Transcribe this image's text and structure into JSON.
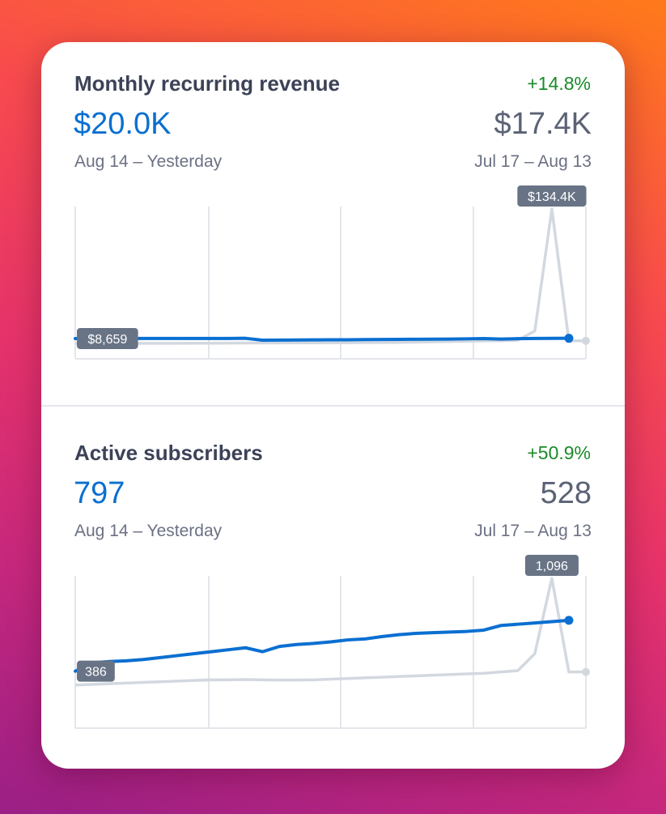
{
  "colors": {
    "current_line": "#0a6fd1",
    "previous_line": "#d3d8e0",
    "positive_change": "#1a8a29",
    "tag_bg": "#687385"
  },
  "metrics": [
    {
      "title": "Monthly recurring revenue",
      "change": "+14.8%",
      "current_value": "$20.0K",
      "previous_value": "$17.4K",
      "current_range": "Aug 14 – Yesterday",
      "previous_range": "Jul 17 – Aug 13"
    },
    {
      "title": "Active subscribers",
      "change": "+50.9%",
      "current_value": "797",
      "previous_value": "528",
      "current_range": "Aug 14 – Yesterday",
      "previous_range": "Jul 17 – Aug 13"
    }
  ],
  "chart_data": [
    {
      "type": "line",
      "title": "Monthly recurring revenue",
      "ylim": [
        0,
        134400
      ],
      "grid": true,
      "series": [
        {
          "name": "Aug 14 – Yesterday",
          "values": [
            8659,
            8700,
            8700,
            8750,
            8750,
            8700,
            8700,
            8700,
            8750,
            8750,
            8900,
            7100,
            7200,
            7300,
            7400,
            7500,
            7500,
            7700,
            7800,
            7900,
            8000,
            8100,
            8200,
            8400,
            8600,
            8200,
            8500,
            8700,
            8800,
            8900
          ]
        },
        {
          "name": "Jul 17 – Aug 13",
          "values": [
            3900,
            3900,
            3900,
            3950,
            4000,
            4000,
            4050,
            4100,
            4100,
            4200,
            4300,
            4400,
            4400,
            4500,
            4500,
            4600,
            4600,
            4700,
            4800,
            4900,
            5200,
            5500,
            5800,
            6100,
            6400,
            6600,
            7000,
            16000,
            134400,
            6500,
            6500
          ]
        }
      ],
      "annotations": [
        "$8,659",
        "$134.4K"
      ]
    },
    {
      "type": "line",
      "title": "Active subscribers",
      "ylim": [
        0,
        1096
      ],
      "grid": true,
      "series": [
        {
          "name": "Aug 14 – Yesterday",
          "values": [
            386,
            450,
            460,
            465,
            475,
            490,
            505,
            520,
            535,
            550,
            565,
            535,
            575,
            590,
            598,
            610,
            625,
            632,
            650,
            665,
            675,
            680,
            685,
            690,
            700,
            735,
            745,
            755,
            765,
            775
          ]
        },
        {
          "name": "Jul 17 – Aug 13",
          "values": [
            280,
            285,
            290,
            295,
            300,
            305,
            310,
            315,
            320,
            320,
            322,
            320,
            318,
            318,
            320,
            325,
            330,
            335,
            340,
            345,
            350,
            355,
            360,
            365,
            370,
            380,
            390,
            520,
            1096,
            380,
            380
          ]
        }
      ],
      "annotations": [
        "386",
        "1,096"
      ]
    }
  ]
}
